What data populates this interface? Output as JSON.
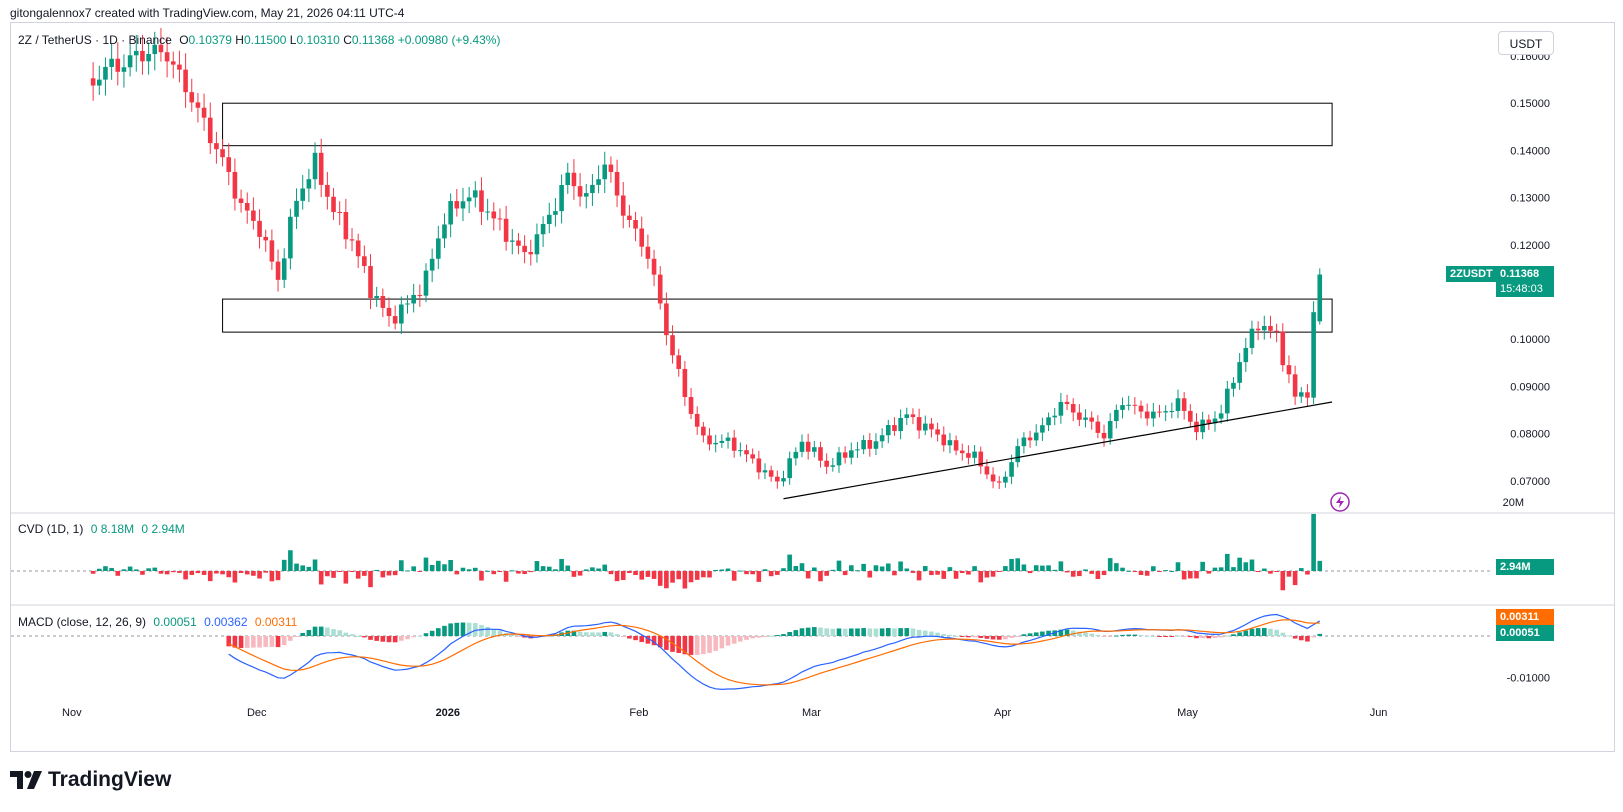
{
  "header": {
    "attribution": "gitongalennox7 created with TradingView.com, May 21, 2026 04:11 UTC-4"
  },
  "brand": {
    "name": "TradingView"
  },
  "toolbar": {
    "currency_button": "USDT"
  },
  "legend": {
    "symbol": "2Z / TetherUS · 1D · Binance",
    "o_label": "O",
    "o_value": "0.10379",
    "h_label": "H",
    "h_value": "0.11500",
    "l_label": "L",
    "l_value": "0.10310",
    "c_label": "C",
    "c_value": "0.11368",
    "change": "+0.00980 (+9.43%)"
  },
  "cvd_legend": {
    "name": "CVD (1D, 1)",
    "o_label": "0",
    "v1": "8.18M",
    "o2_label": "0",
    "v2": "2.94M"
  },
  "macd_legend": {
    "name": "MACD (close, 12, 26, 9)",
    "hist": "0.00051",
    "macd": "0.00362",
    "signal": "0.00311"
  },
  "price_badge": {
    "symbol": "2ZUSDT",
    "price": "0.11368",
    "countdown": "15:48:03"
  },
  "cvd_badge": "2.94M",
  "macd_badges": {
    "signal": "0.00311",
    "hist": "0.00051"
  },
  "colors": {
    "up": "#089981",
    "down": "#f23645",
    "up_light": "#acdfd3",
    "down_light": "#f7b9c0",
    "macd_line": "#2962ff",
    "signal_line": "#ff6d00",
    "grid": "#f0f3fa",
    "text": "#131722",
    "lightning": "#9c27b0"
  },
  "chart_data": [
    {
      "type": "candlestick",
      "title": "2Z / TetherUS · 1D · Binance",
      "ylim": [
        0.064,
        0.162
      ],
      "y_ticks": [
        "0.16000",
        "0.15000",
        "0.14000",
        "0.13000",
        "0.12000",
        "0.10000",
        "0.09000",
        "0.08000",
        "0.07000"
      ],
      "x_ticks": [
        "Nov",
        "Dec",
        "2026",
        "Feb",
        "Mar",
        "Apr",
        "May",
        "Jun"
      ],
      "zones": [
        {
          "from": "2025-11-24",
          "to": "2026-05-23",
          "low": 0.141,
          "high": 0.15
        },
        {
          "from": "2025-11-24",
          "to": "2026-05-23",
          "low": 0.1015,
          "high": 0.1085
        }
      ],
      "trendline": [
        {
          "date": "2026-02-23",
          "price": 0.0662
        },
        {
          "date": "2026-05-23",
          "price": 0.0867
        }
      ],
      "waypoints": [
        [
          "2025-11-03",
          0.154
        ],
        [
          "2025-11-05",
          0.158
        ],
        [
          "2025-11-10",
          0.16
        ],
        [
          "2025-11-15",
          0.16
        ],
        [
          "2025-11-19",
          0.152
        ],
        [
          "2025-11-23",
          0.14
        ],
        [
          "2025-11-27",
          0.128
        ],
        [
          "2025-11-30",
          0.124
        ],
        [
          "2025-12-03",
          0.113
        ],
        [
          "2025-12-06",
          0.129
        ],
        [
          "2025-12-09",
          0.137
        ],
        [
          "2025-12-12",
          0.128
        ],
        [
          "2025-12-15",
          0.121
        ],
        [
          "2025-12-18",
          0.11
        ],
        [
          "2025-12-21",
          0.104
        ],
        [
          "2025-12-24",
          0.108
        ],
        [
          "2025-12-27",
          0.113
        ],
        [
          "2025-12-30",
          0.125
        ],
        [
          "2026-01-03",
          0.131
        ],
        [
          "2026-01-06",
          0.128
        ],
        [
          "2026-01-09",
          0.122
        ],
        [
          "2026-01-12",
          0.117
        ],
        [
          "2026-01-15",
          0.124
        ],
        [
          "2026-01-19",
          0.135
        ],
        [
          "2026-01-22",
          0.129
        ],
        [
          "2026-01-25",
          0.137
        ],
        [
          "2026-01-28",
          0.128
        ],
        [
          "2026-02-01",
          0.118
        ],
        [
          "2026-02-04",
          0.101
        ],
        [
          "2026-02-07",
          0.088
        ],
        [
          "2026-02-10",
          0.079
        ],
        [
          "2026-02-14",
          0.078
        ],
        [
          "2026-02-18",
          0.074
        ],
        [
          "2026-02-22",
          0.07
        ],
        [
          "2026-02-26",
          0.078
        ],
        [
          "2026-03-02",
          0.073
        ],
        [
          "2026-03-06",
          0.077
        ],
        [
          "2026-03-10",
          0.078
        ],
        [
          "2026-03-15",
          0.084
        ],
        [
          "2026-03-19",
          0.081
        ],
        [
          "2026-03-23",
          0.076
        ],
        [
          "2026-03-26",
          0.075
        ],
        [
          "2026-03-30",
          0.069
        ],
        [
          "2026-04-02",
          0.077
        ],
        [
          "2026-04-06",
          0.081
        ],
        [
          "2026-04-09",
          0.087
        ],
        [
          "2026-04-13",
          0.083
        ],
        [
          "2026-04-16",
          0.079
        ],
        [
          "2026-04-19",
          0.087
        ],
        [
          "2026-04-22",
          0.085
        ],
        [
          "2026-04-25",
          0.084
        ],
        [
          "2026-04-28",
          0.086
        ],
        [
          "2026-05-01",
          0.081
        ],
        [
          "2026-05-05",
          0.085
        ],
        [
          "2026-05-08",
          0.095
        ],
        [
          "2026-05-11",
          0.103
        ],
        [
          "2026-05-14",
          0.101
        ],
        [
          "2026-05-17",
          0.088
        ],
        [
          "2026-05-19",
          0.089
        ],
        [
          "2026-05-20",
          0.104
        ],
        [
          "2026-05-21",
          0.1137
        ]
      ],
      "last": {
        "open": 0.10379,
        "high": 0.115,
        "low": 0.1031,
        "close": 0.11368
      }
    },
    {
      "type": "bar",
      "title": "CVD (1D, 1)",
      "ylim": [
        -4000000,
        24000000
      ],
      "y_ticks": [
        "20M"
      ],
      "last_value": 2940000
    },
    {
      "type": "line",
      "title": "MACD (close, 12, 26, 9)",
      "ylim": [
        -0.014,
        0.006
      ],
      "y_ticks": [
        "-0.01000"
      ],
      "last": {
        "histogram": 0.00051,
        "macd": 0.00362,
        "signal": 0.00311
      }
    }
  ]
}
